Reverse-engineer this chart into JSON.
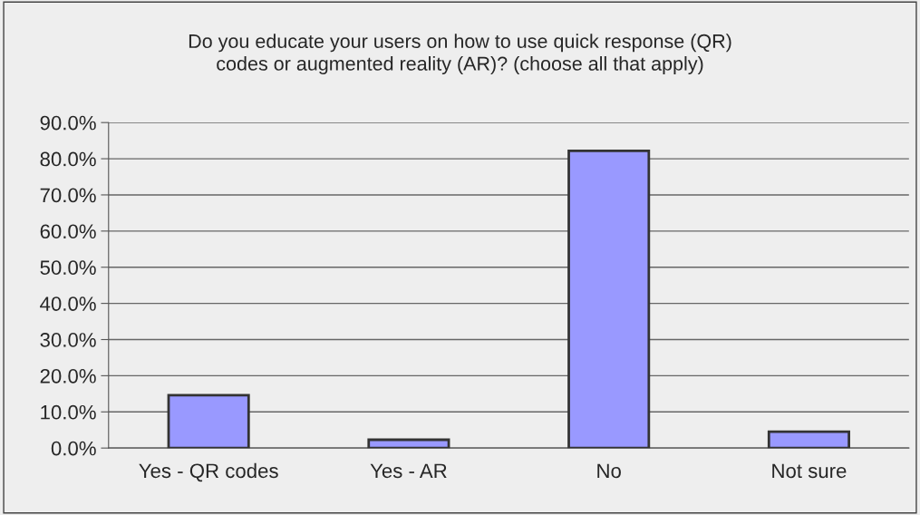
{
  "chart_data": {
    "type": "bar",
    "title": "Do you educate your users on how to use quick response (QR)\ncodes or augmented reality (AR)? (choose all that apply)",
    "categories": [
      "Yes - QR codes",
      "Yes - AR",
      "No",
      "Not sure"
    ],
    "values": [
      14.6,
      2.3,
      82.2,
      4.5
    ],
    "color": "#9999ff",
    "ylim": [
      0,
      90
    ],
    "yticks": [
      {
        "value": 0,
        "label": "0.0%"
      },
      {
        "value": 10,
        "label": "10.0%"
      },
      {
        "value": 20,
        "label": "20.0%"
      },
      {
        "value": 30,
        "label": "30.0%"
      },
      {
        "value": 40,
        "label": "40.0%"
      },
      {
        "value": 50,
        "label": "50.0%"
      },
      {
        "value": 60,
        "label": "60.0%"
      },
      {
        "value": 70,
        "label": "70.0%"
      },
      {
        "value": 80,
        "label": "80.0%"
      },
      {
        "value": 90,
        "label": "90.0%"
      }
    ],
    "grid": "y",
    "legend": false
  }
}
